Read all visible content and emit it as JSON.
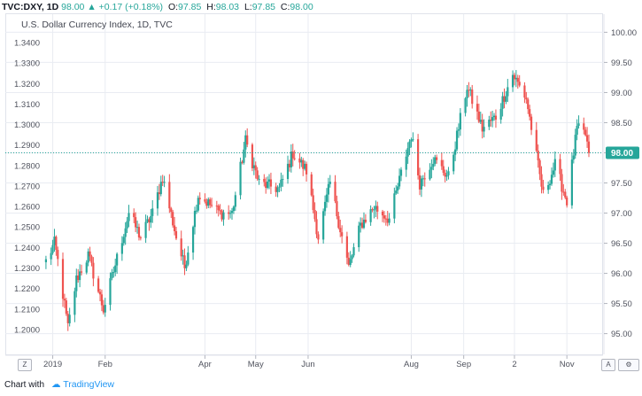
{
  "header": {
    "symbol": "TVC:DXY, 1D",
    "last": "98.00",
    "change": "+0.17 (+0.18%)",
    "o_label": "O:",
    "o_value": "97.85",
    "h_label": "H:",
    "h_value": "98.03",
    "l_label": "L:",
    "l_value": "97.85",
    "c_label": "C:",
    "c_value": "98.00"
  },
  "footer": {
    "shared_with": "Chart with",
    "brand": "TradingView"
  },
  "buttons": {
    "zoom": "Z",
    "auto": "A",
    "settings": "⚙"
  },
  "colors": {
    "up": "#26a69a",
    "down": "#ef5350",
    "price_line": "#26a69a",
    "grid": "#e9ecf2"
  },
  "chart_data": {
    "type": "candlestick",
    "title": "U.S. Dollar Currency Index, 1D, TVC",
    "last_price_label": "98.00",
    "left_axis": {
      "ticks": [
        "1.3400",
        "1.3300",
        "1.3200",
        "1.3100",
        "1.3000",
        "1.2900",
        "1.2800",
        "1.2700",
        "1.2600",
        "1.2500",
        "1.2400",
        "1.2300",
        "1.2200",
        "1.2100",
        "1.2000"
      ],
      "range": [
        1.1965,
        1.3465
      ]
    },
    "right_axis": {
      "ticks": [
        "100.00",
        "99.50",
        "99.00",
        "98.50",
        "98.00",
        "97.50",
        "97.00",
        "96.50",
        "96.00",
        "95.50",
        "95.00"
      ],
      "range": [
        94.95,
        100.05
      ]
    },
    "x_axis": {
      "ticks": [
        "2019",
        "Feb",
        "Apr",
        "May",
        "Jun",
        "Aug",
        "Sep",
        "2",
        "Nov"
      ],
      "range": [
        "2018-12-27",
        "2019-11-14"
      ]
    },
    "grid": true,
    "anchors": [
      [
        "2018-12-28",
        96.2
      ],
      [
        "2019-01-02",
        96.5
      ],
      [
        "2019-01-04",
        96.2
      ],
      [
        "2019-01-10",
        95.1
      ],
      [
        "2019-01-15",
        95.9
      ],
      [
        "2019-01-22",
        96.3
      ],
      [
        "2019-01-31",
        95.4
      ],
      [
        "2019-02-15",
        97.0
      ],
      [
        "2019-02-22",
        96.6
      ],
      [
        "2019-03-01",
        97.0
      ],
      [
        "2019-03-07",
        97.6
      ],
      [
        "2019-03-15",
        96.6
      ],
      [
        "2019-03-20",
        96.1
      ],
      [
        "2019-03-28",
        97.3
      ],
      [
        "2019-04-10",
        97.0
      ],
      [
        "2019-04-17",
        97.0
      ],
      [
        "2019-04-25",
        98.2
      ],
      [
        "2019-05-03",
        97.5
      ],
      [
        "2019-05-15",
        97.4
      ],
      [
        "2019-05-23",
        98.0
      ],
      [
        "2019-05-31",
        97.7
      ],
      [
        "2019-06-07",
        96.6
      ],
      [
        "2019-06-14",
        97.5
      ],
      [
        "2019-06-25",
        96.1
      ],
      [
        "2019-07-02",
        96.8
      ],
      [
        "2019-07-10",
        97.1
      ],
      [
        "2019-07-19",
        96.9
      ],
      [
        "2019-08-01",
        98.3
      ],
      [
        "2019-08-06",
        97.5
      ],
      [
        "2019-08-14",
        97.9
      ],
      [
        "2019-08-23",
        97.6
      ],
      [
        "2019-09-03",
        99.1
      ],
      [
        "2019-09-12",
        98.4
      ],
      [
        "2019-09-20",
        98.6
      ],
      [
        "2019-09-30",
        99.3
      ],
      [
        "2019-10-08",
        98.9
      ],
      [
        "2019-10-18",
        97.3
      ],
      [
        "2019-10-25",
        97.8
      ],
      [
        "2019-11-01",
        97.2
      ],
      [
        "2019-11-07",
        98.4
      ],
      [
        "2019-11-12",
        98.3
      ],
      [
        "2019-11-14",
        98.0
      ]
    ],
    "last_close": 98.0
  }
}
